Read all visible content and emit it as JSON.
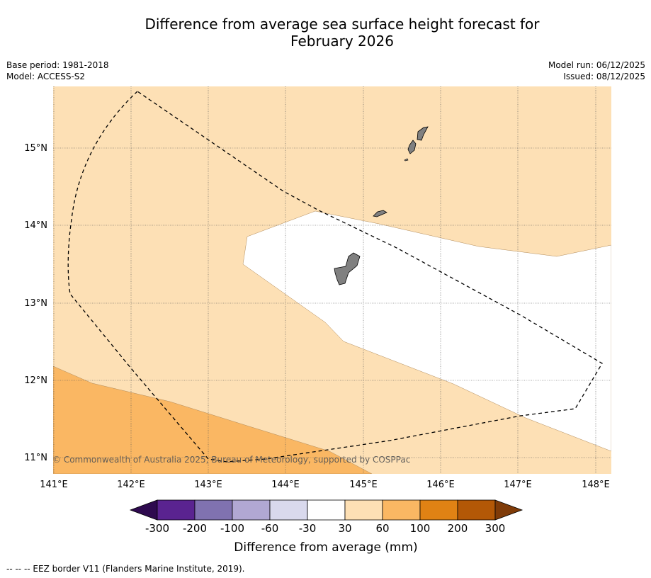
{
  "title_line1": "Difference from average sea surface height forecast for",
  "title_line2": "February 2026",
  "base_period": "Base period: 1981-2018",
  "model": "Model: ACCESS-S2",
  "model_run": "Model run: 06/12/2025",
  "issued": "Issued: 08/12/2025",
  "map": {
    "lon_min": 141,
    "lon_max": 148.2,
    "lat_min": 10.8,
    "lat_max": 15.8,
    "lat_ticks": [
      {
        "value": 11,
        "label": "11°N"
      },
      {
        "value": 12,
        "label": "12°N"
      },
      {
        "value": 13,
        "label": "13°N"
      },
      {
        "value": 14,
        "label": "14°N"
      },
      {
        "value": 15,
        "label": "15°N"
      }
    ],
    "lon_ticks": [
      {
        "value": 141,
        "label": "141°E"
      },
      {
        "value": 142,
        "label": "142°E"
      },
      {
        "value": 143,
        "label": "143°E"
      },
      {
        "value": 144,
        "label": "144°E"
      },
      {
        "value": 145,
        "label": "145°E"
      },
      {
        "value": 146,
        "label": "146°E"
      },
      {
        "value": 147,
        "label": "147°E"
      },
      {
        "value": 148,
        "label": "148°E"
      }
    ],
    "copyright": "© Commonwealth of Australia 2025, Bureau of Meteorology, supported by COSPPac",
    "regions": [
      {
        "name": "30 to 60 mm",
        "color": "#fde0b5"
      },
      {
        "name": "-30 to 30 mm",
        "color": "#ffffff"
      },
      {
        "name": "60 to 100 mm",
        "color": "#fab763"
      }
    ]
  },
  "colorbar": {
    "labels": [
      "-300",
      "-200",
      "-100",
      "-60",
      "-30",
      "30",
      "60",
      "100",
      "200",
      "300"
    ],
    "colors": [
      "#2e0a4f",
      "#5a2390",
      "#8072b0",
      "#b1a8d3",
      "#d9d9ed",
      "#ffffff",
      "#fde0b5",
      "#fab763",
      "#e08214",
      "#b35806",
      "#7f3b08"
    ],
    "title": "Difference from average (mm)"
  },
  "footnote": "--  --  -- EEZ border V11 (Flanders Marine Institute, 2019)."
}
